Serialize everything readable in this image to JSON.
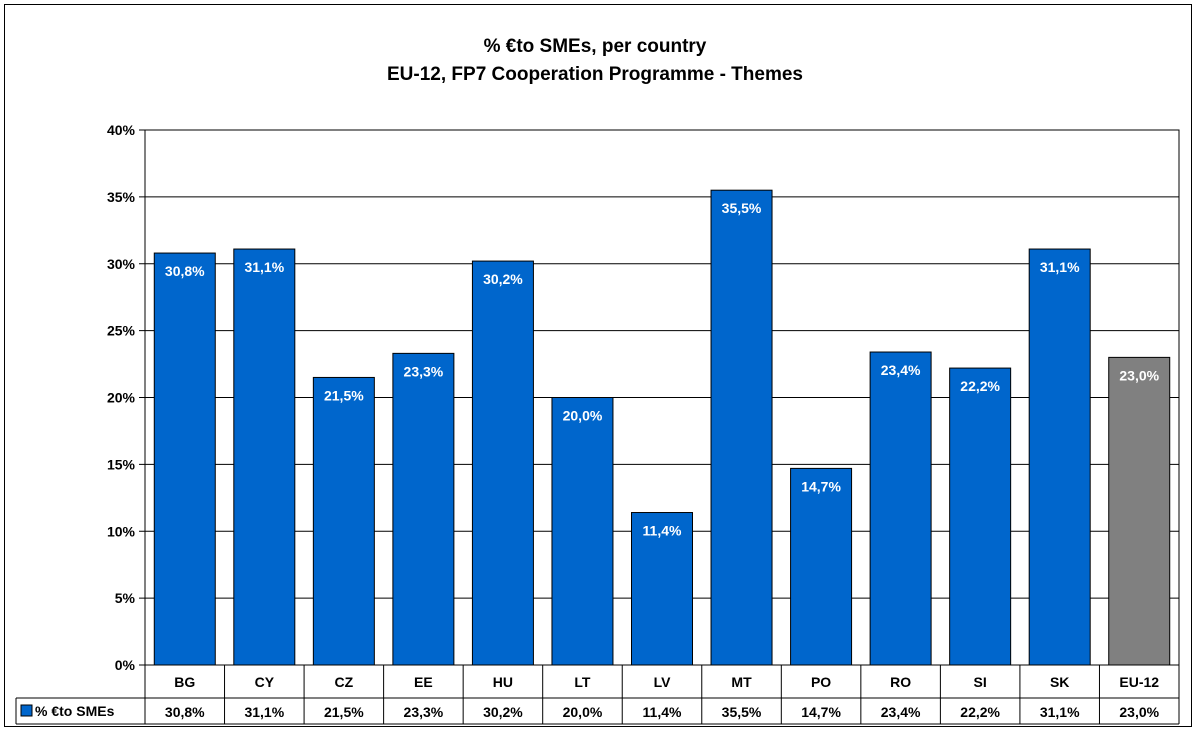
{
  "chart_data": {
    "type": "bar",
    "title_line1": "% €to SMEs, per country",
    "title_line2": "EU-12, FP7 Cooperation Programme - Themes",
    "categories": [
      "BG",
      "CY",
      "CZ",
      "EE",
      "HU",
      "LT",
      "LV",
      "MT",
      "PO",
      "RO",
      "SI",
      "SK",
      "EU-12"
    ],
    "series": [
      {
        "name": "% €to SMEs",
        "values": [
          30.8,
          31.1,
          21.5,
          23.3,
          30.2,
          20.0,
          11.4,
          35.5,
          14.7,
          23.4,
          22.2,
          31.1,
          23.0
        ],
        "labels": [
          "30,8%",
          "31,1%",
          "21,5%",
          "23,3%",
          "30,2%",
          "20,0%",
          "11,4%",
          "35,5%",
          "14,7%",
          "23,4%",
          "22,2%",
          "31,1%",
          "23,0%"
        ]
      }
    ],
    "ylim": [
      0,
      40
    ],
    "yticks": [
      "0%",
      "5%",
      "10%",
      "15%",
      "20%",
      "25%",
      "30%",
      "35%",
      "40%"
    ],
    "grid": true,
    "legend": "data-table",
    "colors": {
      "bar": "#0066CC",
      "highlight": "#808080",
      "highlight_category": "EU-12"
    }
  }
}
